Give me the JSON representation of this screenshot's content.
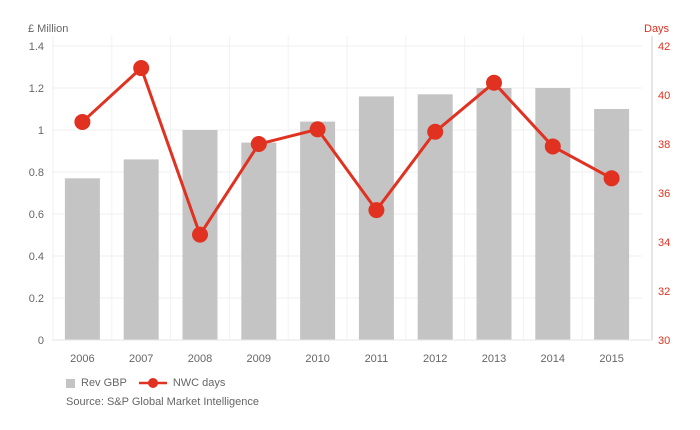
{
  "chart_data": {
    "type": "bar+line",
    "categories": [
      "2006",
      "2007",
      "2008",
      "2009",
      "2010",
      "2011",
      "2012",
      "2013",
      "2014",
      "2015"
    ],
    "series": [
      {
        "name": "Rev GBP",
        "type": "bar",
        "axis": "left",
        "values": [
          0.77,
          0.86,
          1.0,
          0.94,
          1.04,
          1.16,
          1.17,
          1.2,
          1.2,
          1.1
        ]
      },
      {
        "name": "NWC days",
        "type": "line",
        "axis": "right",
        "values": [
          38.9,
          41.1,
          34.3,
          38.0,
          38.6,
          35.3,
          38.5,
          40.5,
          37.9,
          36.6
        ]
      }
    ],
    "left_axis": {
      "label": "£ Million",
      "ylim": [
        0,
        1.4
      ],
      "ticks": [
        "0",
        "0.2",
        "0.4",
        "0.6",
        "0.8",
        "1",
        "1.2",
        "1.4"
      ]
    },
    "right_axis": {
      "label": "Days",
      "ylim": [
        30,
        42
      ],
      "ticks": [
        "30",
        "32",
        "34",
        "36",
        "38",
        "40",
        "42"
      ]
    },
    "grid": true,
    "legend_placement": "bottom-left",
    "colors": {
      "bar": "#c4c4c4",
      "line": "#e03121",
      "left_text": "#666666",
      "right_text": "#e03121"
    }
  },
  "source": "Source: S&P Global Market Intelligence"
}
